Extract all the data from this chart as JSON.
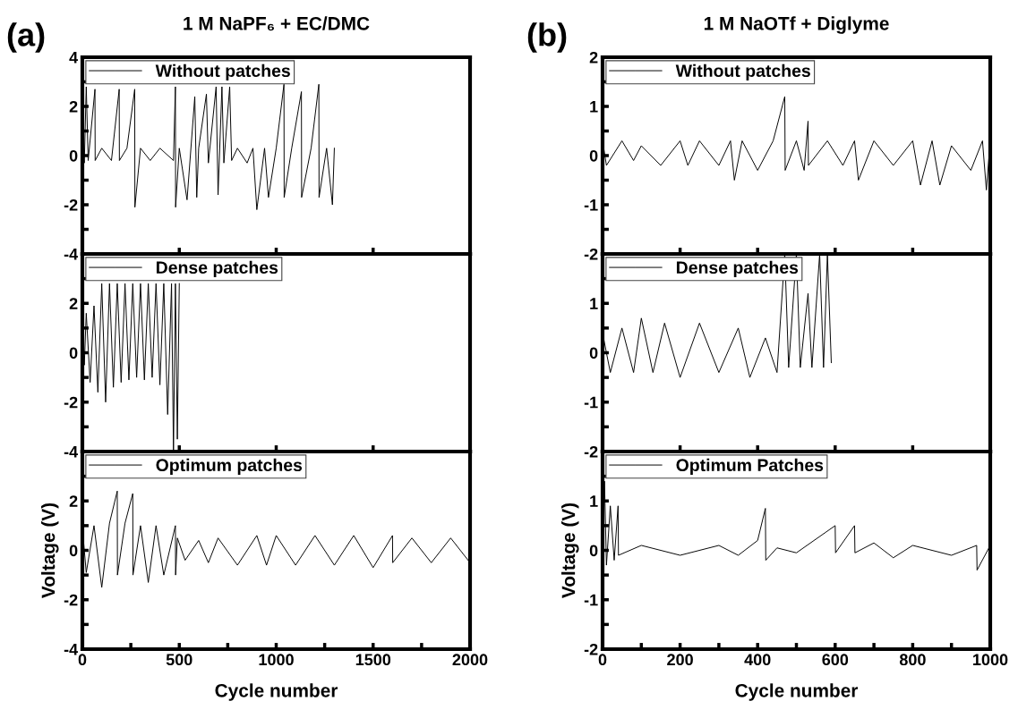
{
  "chart_data": [
    {
      "type": "line",
      "title": "1 M NaPF₆ + EC/DMC",
      "annotations": [
        "(a)"
      ],
      "legend": "top left",
      "tick_labels": "y",
      "xlim": [
        0,
        2000
      ],
      "xticks": [
        0,
        500,
        1000,
        1500,
        2000
      ],
      "ylim": [
        -4,
        4
      ],
      "yticks": [
        -4,
        {
          "value": -3,
          "label": null
        },
        -2,
        {
          "value": -1,
          "label": null
        },
        0,
        {
          "value": 1,
          "label": null
        },
        2,
        {
          "value": 3,
          "label": null
        },
        4
      ],
      "series": [
        {
          "name": "Without patches",
          "color": "#000000",
          "x": [
            0,
            10,
            20,
            30,
            65,
            66,
            100,
            150,
            190,
            191,
            230,
            270,
            271,
            300,
            350,
            400,
            470,
            480,
            481,
            500,
            540,
            580,
            590,
            600,
            640,
            650,
            690,
            700,
            720,
            730,
            760,
            770,
            800,
            850,
            880,
            900,
            940,
            960,
            1000,
            1040,
            1041,
            1080,
            1130,
            1131,
            1180,
            1220,
            1221,
            1260,
            1290,
            1300
          ],
          "values": [
            0.9,
            -0.3,
            2.8,
            -0.2,
            2.7,
            -0.2,
            0.3,
            -0.2,
            2.7,
            -0.2,
            0.3,
            2.7,
            -2.1,
            0.3,
            -0.2,
            0.3,
            -0.2,
            2.8,
            -2.1,
            0.3,
            -1.8,
            2.4,
            -1.7,
            0.3,
            2.5,
            -0.3,
            2.8,
            -1.6,
            2.8,
            -0.3,
            2.8,
            -0.2,
            0.3,
            -0.3,
            0.3,
            -2.2,
            0.3,
            -1.7,
            0.3,
            2.9,
            -1.7,
            0.3,
            2.6,
            -1.7,
            0.3,
            2.9,
            -1.7,
            0.3,
            -2.0,
            0.3
          ]
        }
      ]
    },
    {
      "type": "line",
      "legend": "top left",
      "tick_labels": "y",
      "xlim": [
        0,
        2000
      ],
      "xticks": [
        0,
        500,
        1000,
        1500,
        2000
      ],
      "ylim": [
        -4,
        4
      ],
      "yticks": [
        -4,
        {
          "value": -3,
          "label": null
        },
        -2,
        {
          "value": -1,
          "label": null
        },
        0,
        {
          "value": 1,
          "label": null
        },
        2,
        {
          "value": 3,
          "label": null
        },
        {
          "value": 4,
          "label": null
        }
      ],
      "series": [
        {
          "name": "Dense patches",
          "color": "#000000",
          "x": [
            0,
            10,
            20,
            40,
            60,
            80,
            100,
            120,
            140,
            160,
            180,
            200,
            220,
            240,
            260,
            280,
            300,
            320,
            340,
            360,
            380,
            400,
            420,
            440,
            460,
            470,
            480,
            490,
            500
          ],
          "values": [
            1.4,
            -0.5,
            1.6,
            -1.2,
            1.9,
            -1.6,
            2.8,
            -2.0,
            2.8,
            -1.4,
            2.8,
            -1.2,
            2.8,
            -1.1,
            2.8,
            -1.0,
            2.8,
            -1.1,
            2.8,
            -1.0,
            2.8,
            -1.3,
            2.8,
            -2.5,
            2.8,
            -4.0,
            2.8,
            -3.5,
            2.8
          ]
        }
      ]
    },
    {
      "type": "line",
      "xlabel": "Cycle number",
      "ylabel": "Voltage (V)",
      "legend": "top left",
      "xlim": [
        0,
        2000
      ],
      "xticks": [
        0,
        {
          "value": 250,
          "label": null
        },
        500,
        {
          "value": 750,
          "label": null
        },
        1000,
        {
          "value": 1250,
          "label": null
        },
        1500,
        {
          "value": 1750,
          "label": null
        },
        2000
      ],
      "ylim": [
        -4,
        4
      ],
      "yticks": [
        -4,
        {
          "value": -3,
          "label": null
        },
        -2,
        {
          "value": -1,
          "label": null
        },
        0,
        {
          "value": 1,
          "label": null
        },
        2,
        {
          "value": 3,
          "label": null
        },
        {
          "value": 4,
          "label": null
        }
      ],
      "series": [
        {
          "name": "Optimum patches",
          "color": "#000000",
          "x": [
            0,
            20,
            60,
            100,
            140,
            180,
            181,
            220,
            260,
            261,
            300,
            340,
            380,
            420,
            480,
            481,
            490,
            530,
            600,
            650,
            700,
            800,
            900,
            950,
            1000,
            1100,
            1200,
            1300,
            1400,
            1500,
            1600,
            1601,
            1700,
            1800,
            1900,
            2000
          ],
          "values": [
            0.9,
            -0.9,
            1.0,
            -1.5,
            1.1,
            2.4,
            -1.0,
            1.1,
            2.3,
            -1.0,
            1.0,
            -1.3,
            1.0,
            -1.0,
            1.0,
            -1.0,
            0.5,
            -0.4,
            0.4,
            -0.5,
            0.5,
            -0.6,
            0.6,
            -0.6,
            0.6,
            -0.6,
            0.6,
            -0.6,
            0.6,
            -0.7,
            0.6,
            -0.5,
            0.5,
            -0.5,
            0.5,
            -0.5
          ]
        }
      ]
    },
    {
      "type": "line",
      "title": "1 M NaOTf + Diglyme",
      "annotations": [
        "(b)"
      ],
      "legend": "top left",
      "tick_labels": "y",
      "xlim": [
        0,
        1000
      ],
      "xticks": [
        0,
        200,
        400,
        600,
        800,
        1000
      ],
      "ylim": [
        -2,
        2
      ],
      "yticks": [
        -2,
        {
          "value": -1.5,
          "label": null
        },
        -1,
        {
          "value": -0.5,
          "label": null
        },
        0,
        {
          "value": 0.5,
          "label": null
        },
        1,
        {
          "value": 1.5,
          "label": null
        },
        2
      ],
      "series": [
        {
          "name": "Without patches",
          "color": "#000000",
          "x": [
            0,
            10,
            50,
            80,
            100,
            150,
            200,
            220,
            250,
            300,
            330,
            340,
            360,
            400,
            440,
            470,
            471,
            500,
            520,
            530,
            531,
            580,
            620,
            650,
            660,
            700,
            750,
            800,
            820,
            850,
            870,
            900,
            950,
            980,
            990,
            1000
          ],
          "values": [
            0.3,
            -0.2,
            0.3,
            -0.1,
            0.2,
            -0.2,
            0.3,
            -0.2,
            0.3,
            -0.2,
            0.3,
            -0.5,
            0.3,
            -0.3,
            0.3,
            1.2,
            -0.3,
            0.3,
            -0.3,
            0.7,
            -0.2,
            0.3,
            -0.2,
            0.3,
            -0.5,
            0.3,
            -0.2,
            0.3,
            -0.6,
            0.3,
            -0.6,
            0.2,
            -0.3,
            0.3,
            -0.7,
            0.3
          ]
        }
      ]
    },
    {
      "type": "line",
      "legend": "top left",
      "tick_labels": "y",
      "xlim": [
        0,
        1000
      ],
      "xticks": [
        0,
        200,
        400,
        600,
        800,
        1000
      ],
      "ylim": [
        -2,
        2
      ],
      "yticks": [
        -2,
        {
          "value": -1.5,
          "label": null
        },
        -1,
        {
          "value": -0.5,
          "label": null
        },
        0,
        {
          "value": 0.5,
          "label": null
        },
        1,
        {
          "value": 1.5,
          "label": null
        },
        {
          "value": 2,
          "label": null
        }
      ],
      "series": [
        {
          "name": "Dense patches",
          "color": "#000000",
          "x": [
            0,
            20,
            50,
            80,
            100,
            130,
            160,
            200,
            250,
            300,
            350,
            380,
            420,
            450,
            470,
            480,
            500,
            510,
            530,
            540,
            560,
            570,
            580,
            590
          ],
          "values": [
            0.4,
            -0.4,
            0.5,
            -0.4,
            0.7,
            -0.4,
            0.6,
            -0.5,
            0.6,
            -0.4,
            0.5,
            -0.5,
            0.3,
            -0.4,
            2.0,
            -0.3,
            2.0,
            -0.3,
            1.2,
            -0.3,
            2.0,
            -0.3,
            2.0,
            -0.2
          ]
        }
      ]
    },
    {
      "type": "line",
      "xlabel": "Cycle number",
      "ylabel": "Voltage (V)",
      "legend": "top left",
      "xlim": [
        0,
        1000
      ],
      "xticks": [
        0,
        {
          "value": 100,
          "label": null
        },
        200,
        {
          "value": 300,
          "label": null
        },
        400,
        {
          "value": 500,
          "label": null
        },
        600,
        {
          "value": 700,
          "label": null
        },
        800,
        {
          "value": 900,
          "label": null
        },
        1000
      ],
      "ylim": [
        -2,
        2
      ],
      "yticks": [
        -2,
        {
          "value": -1.5,
          "label": null
        },
        -1,
        {
          "value": -0.5,
          "label": null
        },
        0,
        {
          "value": 0.5,
          "label": null
        },
        1,
        {
          "value": 1.5,
          "label": null
        },
        {
          "value": 2,
          "label": null
        }
      ],
      "series": [
        {
          "name": "Optimum Patches",
          "color": "#000000",
          "x": [
            0,
            5,
            10,
            20,
            30,
            40,
            41,
            100,
            200,
            300,
            350,
            400,
            420,
            421,
            450,
            500,
            600,
            601,
            650,
            651,
            700,
            750,
            800,
            900,
            965,
            966,
            1000
          ],
          "values": [
            0.2,
            1.4,
            -0.3,
            0.9,
            -0.2,
            0.9,
            -0.1,
            0.1,
            -0.1,
            0.1,
            -0.1,
            0.2,
            0.85,
            -0.2,
            0.05,
            -0.05,
            0.5,
            -0.05,
            0.5,
            -0.05,
            0.15,
            -0.15,
            0.1,
            -0.1,
            0.1,
            -0.4,
            0.1
          ]
        }
      ]
    }
  ]
}
